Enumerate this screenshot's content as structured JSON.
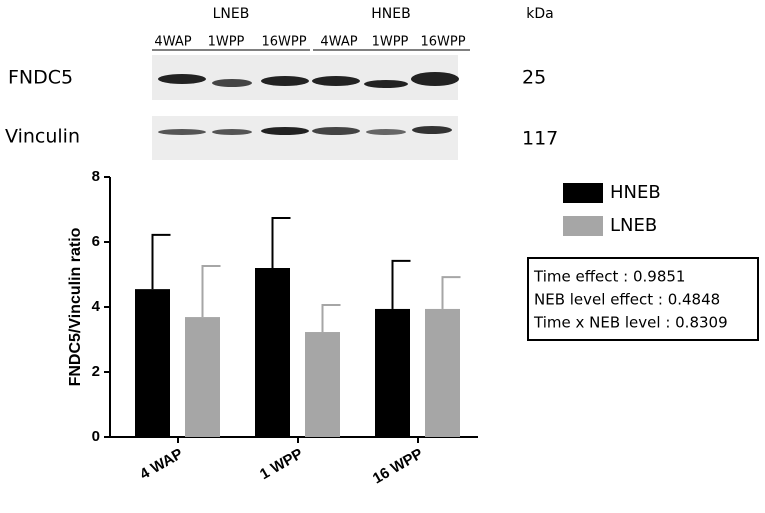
{
  "blot": {
    "groups": [
      "LNEB",
      "HNEB"
    ],
    "unit": "kDa",
    "lanes": [
      "4WAP",
      "1WPP",
      "16WPP",
      "4WAP",
      "1WPP",
      "16WPP"
    ],
    "rows": [
      {
        "protein": "FNDC5",
        "size": "25"
      },
      {
        "protein": "Vinculin",
        "size": "117"
      }
    ]
  },
  "chart_data": {
    "type": "bar",
    "ylabel": "FNDC5/Vinculin ratio",
    "categories": [
      "4 WAP",
      "1 WPP",
      "16 WPP"
    ],
    "series": [
      {
        "name": "HNEB",
        "color": "#000000",
        "values": [
          4.55,
          5.2,
          3.94
        ],
        "errors": [
          1.67,
          1.54,
          1.48
        ]
      },
      {
        "name": "LNEB",
        "color": "#a6a6a6",
        "values": [
          3.69,
          3.23,
          3.94
        ],
        "errors": [
          1.57,
          0.83,
          0.98
        ]
      }
    ],
    "ylim": [
      0,
      8
    ],
    "yticks": [
      0,
      2,
      4,
      6,
      8
    ],
    "legend": "right",
    "annotations": [
      "Time effect : 0.9851",
      "NEB level effect : 0.4848",
      "Time x NEB level : 0.8309"
    ]
  }
}
